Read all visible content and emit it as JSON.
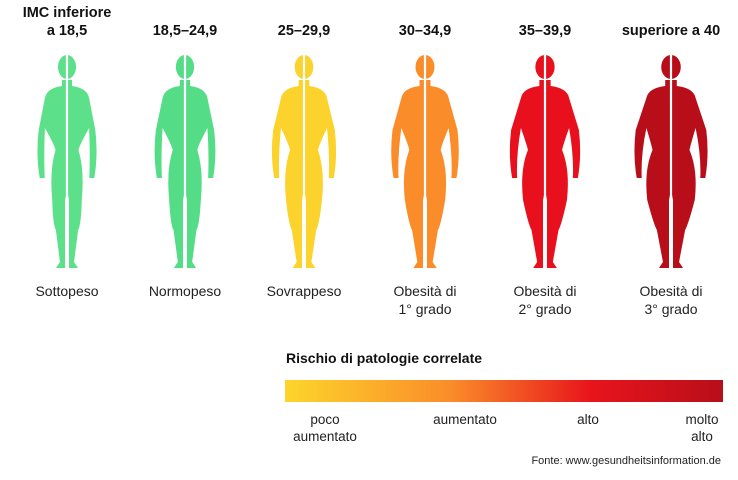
{
  "columns": [
    {
      "range": "IMC inferiore\na 18,5",
      "category": "Sottopeso",
      "color": "#5ce08a"
    },
    {
      "range": "18,5–24,9",
      "category": "Normopeso",
      "color": "#55dc86"
    },
    {
      "range": "25–29,9",
      "category": "Sovrappeso",
      "color": "#fcd22c"
    },
    {
      "range": "30–34,9",
      "category": "Obesità di\n1° grado",
      "color": "#fa8c2a"
    },
    {
      "range": "35–39,9",
      "category": "Obesità di\n2° grado",
      "color": "#e8101c"
    },
    {
      "range": "superiore a 40",
      "category": "Obesità di\n3° grado",
      "color": "#b80e1a"
    }
  ],
  "risk": {
    "title": "Rischio di patologie correlate",
    "gradient": [
      "#fdd52b",
      "#fa8c2a",
      "#e8141c",
      "#b80e1a"
    ],
    "labels": [
      "poco\naumentato",
      "aumentato",
      "alto",
      "molto\nalto"
    ]
  },
  "source": "Fonte: www.gesundheitsinformation.de"
}
